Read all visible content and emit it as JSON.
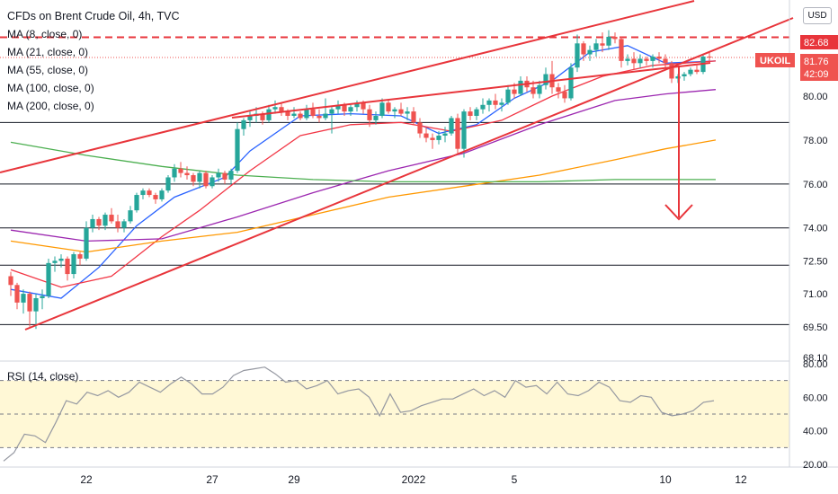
{
  "header": {
    "title": "CFDs on Brent Crude Oil, 4h, TVC",
    "indicators": [
      "MA (8, close, 0)",
      "MA (21, close, 0)",
      "MA (55, close, 0)",
      "MA (100, close, 0)",
      "MA (200, close, 0)"
    ],
    "rsi_label": "RSI (14, close)",
    "currency": "USD"
  },
  "badges": {
    "resistance_price": "82.68",
    "last_price": "81.76",
    "countdown": "42:09",
    "symbol": "UKOIL"
  },
  "colors": {
    "up": "#26a69a",
    "down": "#ef5350",
    "trend": "#e8353b",
    "ma8": "#2962ff",
    "ma21": "#f23645",
    "ma55": "#9c27b0",
    "ma100": "#ff9800",
    "ma200": "#4caf50",
    "rsi": "#9598a1"
  },
  "chart_data": [
    {
      "type": "candlestick",
      "title": "CFDs on Brent Crude Oil, 4h, TVC",
      "x_ticks": [
        "22",
        "27",
        "29",
        "2022",
        "5",
        "10",
        "12"
      ],
      "y_ticks": [
        68.1,
        69.5,
        71.0,
        72.5,
        74.0,
        76.0,
        78.0,
        80.0
      ],
      "ylim": [
        68.1,
        83.6
      ],
      "horizontal_levels": [
        82.68,
        78.8,
        76.0,
        74.0,
        72.3,
        69.6
      ],
      "projection_target": 74.0,
      "candles_ohlc": [
        [
          71.8,
          72.0,
          70.9,
          71.4
        ],
        [
          71.4,
          71.5,
          70.3,
          70.6
        ],
        [
          70.6,
          71.2,
          70.1,
          71.0
        ],
        [
          71.0,
          71.1,
          69.5,
          70.2
        ],
        [
          70.2,
          71.0,
          69.4,
          70.8
        ],
        [
          70.8,
          71.2,
          70.3,
          70.9
        ],
        [
          70.9,
          72.6,
          70.8,
          72.4
        ],
        [
          72.4,
          72.7,
          72.0,
          72.5
        ],
        [
          72.5,
          72.8,
          72.2,
          72.6
        ],
        [
          72.6,
          72.7,
          71.6,
          71.9
        ],
        [
          71.9,
          72.9,
          71.7,
          72.8
        ],
        [
          72.8,
          72.9,
          72.3,
          72.6
        ],
        [
          72.6,
          74.3,
          72.5,
          74.0
        ],
        [
          74.0,
          74.6,
          73.8,
          74.4
        ],
        [
          74.4,
          74.5,
          73.9,
          74.1
        ],
        [
          74.1,
          74.7,
          73.9,
          74.6
        ],
        [
          74.6,
          74.9,
          74.2,
          74.3
        ],
        [
          74.3,
          74.6,
          73.8,
          74.0
        ],
        [
          74.0,
          74.4,
          73.8,
          74.3
        ],
        [
          74.3,
          75.0,
          74.2,
          74.8
        ],
        [
          74.8,
          75.6,
          74.7,
          75.5
        ],
        [
          75.5,
          75.8,
          75.3,
          75.7
        ],
        [
          75.7,
          75.8,
          75.4,
          75.5
        ],
        [
          75.5,
          75.6,
          75.1,
          75.3
        ],
        [
          75.3,
          75.8,
          75.2,
          75.7
        ],
        [
          75.7,
          76.4,
          75.6,
          76.3
        ],
        [
          76.3,
          76.9,
          76.1,
          76.7
        ],
        [
          76.7,
          77.0,
          76.3,
          76.5
        ],
        [
          76.5,
          76.8,
          76.2,
          76.4
        ],
        [
          76.4,
          76.5,
          75.9,
          76.1
        ],
        [
          76.1,
          76.6,
          75.8,
          76.5
        ],
        [
          76.5,
          76.6,
          75.8,
          75.9
        ],
        [
          75.9,
          76.4,
          75.8,
          76.3
        ],
        [
          76.3,
          76.7,
          76.1,
          76.5
        ],
        [
          76.5,
          76.6,
          76.0,
          76.2
        ],
        [
          76.2,
          76.7,
          76.0,
          76.6
        ],
        [
          76.6,
          78.8,
          76.5,
          78.5
        ],
        [
          78.5,
          79.0,
          78.2,
          78.9
        ],
        [
          78.9,
          79.3,
          78.6,
          79.1
        ],
        [
          79.1,
          79.5,
          78.8,
          79.2
        ],
        [
          79.2,
          79.3,
          78.7,
          78.9
        ],
        [
          78.9,
          79.6,
          78.8,
          79.4
        ],
        [
          79.4,
          79.8,
          79.2,
          79.5
        ],
        [
          79.5,
          79.7,
          79.1,
          79.3
        ],
        [
          79.3,
          79.4,
          78.9,
          79.1
        ],
        [
          79.1,
          79.5,
          79.0,
          79.2
        ],
        [
          79.2,
          79.3,
          78.9,
          79.0
        ],
        [
          79.0,
          79.6,
          78.9,
          79.4
        ],
        [
          79.4,
          79.7,
          79.0,
          79.1
        ],
        [
          79.1,
          79.4,
          78.8,
          79.0
        ],
        [
          79.0,
          79.9,
          78.9,
          79.2
        ],
        [
          79.2,
          79.5,
          78.3,
          79.4
        ],
        [
          79.4,
          79.8,
          79.2,
          79.6
        ],
        [
          79.6,
          79.7,
          79.1,
          79.3
        ],
        [
          79.3,
          79.6,
          79.1,
          79.5
        ],
        [
          79.5,
          79.8,
          79.3,
          79.7
        ],
        [
          79.7,
          79.8,
          79.2,
          79.4
        ],
        [
          79.4,
          79.6,
          78.6,
          78.9
        ],
        [
          78.9,
          79.3,
          78.7,
          79.1
        ],
        [
          79.1,
          79.9,
          79.0,
          79.7
        ],
        [
          79.7,
          79.8,
          79.2,
          79.3
        ],
        [
          79.3,
          79.5,
          79.0,
          79.4
        ],
        [
          79.4,
          79.7,
          79.1,
          79.2
        ],
        [
          79.2,
          79.5,
          78.9,
          79.3
        ],
        [
          79.3,
          79.5,
          78.7,
          78.8
        ],
        [
          78.8,
          79.0,
          78.1,
          78.3
        ],
        [
          78.3,
          78.6,
          77.9,
          78.1
        ],
        [
          78.1,
          78.3,
          77.6,
          78.0
        ],
        [
          78.0,
          78.4,
          77.8,
          78.2
        ],
        [
          78.2,
          78.6,
          77.9,
          78.3
        ],
        [
          78.3,
          79.1,
          78.2,
          79.0
        ],
        [
          79.0,
          79.2,
          77.4,
          77.6
        ],
        [
          77.6,
          79.4,
          77.2,
          79.3
        ],
        [
          79.3,
          79.5,
          78.9,
          79.1
        ],
        [
          79.1,
          79.5,
          78.9,
          79.4
        ],
        [
          79.4,
          79.9,
          79.2,
          79.6
        ],
        [
          79.6,
          79.9,
          79.3,
          79.8
        ],
        [
          79.8,
          80.1,
          79.4,
          79.6
        ],
        [
          79.6,
          79.9,
          79.3,
          79.7
        ],
        [
          79.7,
          80.5,
          79.6,
          80.3
        ],
        [
          80.3,
          80.6,
          79.9,
          80.1
        ],
        [
          80.1,
          80.9,
          80.0,
          80.7
        ],
        [
          80.7,
          80.9,
          80.2,
          80.4
        ],
        [
          80.4,
          80.7,
          79.9,
          80.1
        ],
        [
          80.1,
          80.7,
          79.9,
          80.5
        ],
        [
          80.5,
          81.3,
          80.3,
          81.0
        ],
        [
          81.0,
          81.6,
          80.1,
          80.4
        ],
        [
          80.4,
          80.6,
          79.9,
          80.2
        ],
        [
          80.2,
          80.5,
          79.7,
          79.9
        ],
        [
          79.9,
          81.5,
          79.8,
          81.3
        ],
        [
          81.3,
          82.8,
          81.1,
          82.4
        ],
        [
          82.4,
          82.5,
          81.6,
          81.9
        ],
        [
          81.9,
          82.3,
          81.6,
          82.1
        ],
        [
          82.1,
          82.6,
          81.8,
          82.4
        ],
        [
          82.4,
          82.9,
          82.0,
          82.3
        ],
        [
          82.3,
          83.0,
          82.1,
          82.7
        ],
        [
          82.7,
          82.9,
          82.4,
          82.6
        ],
        [
          82.6,
          82.7,
          81.3,
          81.6
        ],
        [
          81.6,
          81.9,
          81.4,
          81.7
        ],
        [
          81.7,
          82.0,
          81.2,
          81.5
        ],
        [
          81.5,
          81.9,
          81.3,
          81.7
        ],
        [
          81.7,
          81.8,
          81.4,
          81.6
        ],
        [
          81.6,
          81.9,
          81.3,
          81.8
        ],
        [
          81.8,
          82.0,
          81.5,
          81.7
        ],
        [
          81.7,
          81.9,
          81.3,
          81.5
        ],
        [
          81.5,
          81.6,
          80.6,
          80.8
        ],
        [
          80.8,
          81.0,
          80.6,
          80.9
        ],
        [
          80.9,
          81.1,
          80.7,
          81.0
        ],
        [
          81.0,
          81.3,
          80.9,
          81.2
        ],
        [
          81.2,
          81.4,
          81.0,
          81.1
        ],
        [
          81.1,
          81.9,
          81.0,
          81.8
        ],
        [
          81.8,
          82.0,
          81.6,
          81.76
        ]
      ],
      "moving_averages": [
        {
          "name": "MA (8, close, 0)",
          "x": [
            0,
            8,
            14,
            20,
            26,
            34,
            38,
            46,
            54,
            62,
            68,
            74,
            80,
            86,
            92,
            98,
            104,
            112
          ],
          "y": [
            71.2,
            70.8,
            72.2,
            74.1,
            75.4,
            76.3,
            77.5,
            79.1,
            79.2,
            79.1,
            78.3,
            78.7,
            79.9,
            80.7,
            82.0,
            82.3,
            81.5,
            81.6
          ]
        },
        {
          "name": "MA (21, close, 0)",
          "x": [
            0,
            8,
            16,
            24,
            30,
            38,
            46,
            54,
            62,
            70,
            78,
            86,
            94,
            102,
            112
          ],
          "y": [
            72.1,
            71.3,
            71.8,
            73.6,
            74.8,
            76.6,
            78.2,
            78.7,
            78.8,
            78.4,
            78.9,
            80.0,
            80.9,
            81.4,
            81.6
          ]
        },
        {
          "name": "MA (55, close, 0)",
          "x": [
            0,
            12,
            24,
            36,
            48,
            60,
            72,
            84,
            96,
            104,
            112
          ],
          "y": [
            73.9,
            73.4,
            73.5,
            74.5,
            75.6,
            76.6,
            77.4,
            78.7,
            79.8,
            80.1,
            80.3
          ]
        },
        {
          "name": "MA (100, close, 0)",
          "x": [
            0,
            12,
            24,
            36,
            48,
            60,
            72,
            84,
            96,
            104,
            112
          ],
          "y": [
            73.4,
            72.9,
            73.4,
            73.8,
            74.6,
            75.4,
            75.9,
            76.4,
            77.1,
            77.6,
            78.0
          ]
        },
        {
          "name": "MA (200, close, 0)",
          "x": [
            0,
            12,
            24,
            36,
            48,
            60,
            72,
            84,
            96,
            112
          ],
          "y": [
            77.9,
            77.3,
            76.8,
            76.4,
            76.2,
            76.1,
            76.1,
            76.1,
            76.2,
            76.2
          ]
        }
      ]
    },
    {
      "type": "line",
      "title": "RSI (14, close)",
      "y_ticks": [
        20.0,
        40.0,
        60.0,
        80.0
      ],
      "ylim": [
        18,
        82
      ],
      "bands": [
        30,
        50,
        70
      ],
      "values": [
        22,
        27,
        38,
        37,
        33,
        45,
        58,
        56,
        63,
        61,
        64,
        60,
        63,
        69,
        66,
        63,
        68,
        72,
        68,
        62,
        62,
        66,
        73,
        76,
        77,
        78,
        74,
        69,
        70,
        65,
        67,
        70,
        62,
        64,
        65,
        60,
        49,
        62,
        51,
        52,
        55,
        57,
        59,
        59,
        62,
        65,
        61,
        64,
        60,
        70,
        66,
        67,
        62,
        69,
        62,
        61,
        64,
        69,
        66,
        58,
        57,
        61,
        60,
        51,
        49,
        50,
        52,
        57,
        58
      ]
    }
  ]
}
